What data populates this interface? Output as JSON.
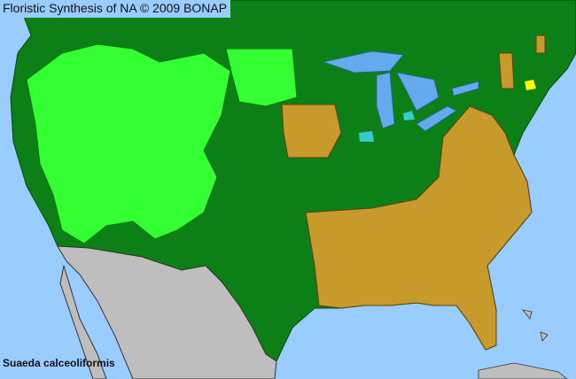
{
  "header": {
    "title": "Floristic Synthesis of NA © 2009 BONAP"
  },
  "map": {
    "species": "Suaeda calceoliformis",
    "colors": {
      "ocean": "#99ccff",
      "county_present": "#00aa00",
      "state_present": "#008000",
      "state_absent": "#c89a2c",
      "non_native_county": "#33cccc",
      "rare": "#ffff00",
      "outside_range": "#bebebe",
      "lakes": "#66aaee",
      "county_lines": "#005000"
    }
  }
}
